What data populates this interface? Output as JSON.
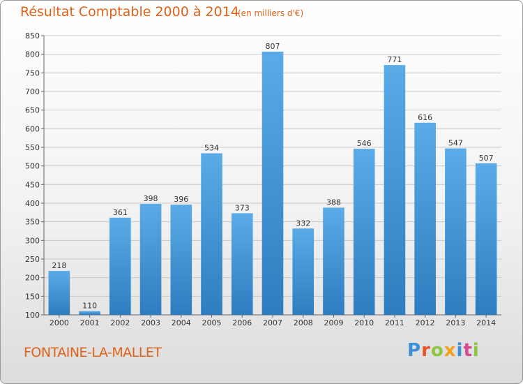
{
  "header": {
    "title": "Résultat Comptable 2000 à 2014",
    "unit": "(en milliers d'€)"
  },
  "footer": {
    "commune": "FONTAINE-LA-MALLET",
    "logo_text": "Proxiti",
    "logo_colors": [
      "#3a8fd6",
      "#e8532a",
      "#8cc63f",
      "#f3a21b",
      "#3a8fd6",
      "#d64a8d",
      "#8cc63f"
    ]
  },
  "chart_data": {
    "type": "bar",
    "categories": [
      "2000",
      "2001",
      "2002",
      "2003",
      "2004",
      "2005",
      "2006",
      "2007",
      "2008",
      "2009",
      "2010",
      "2011",
      "2012",
      "2013",
      "2014"
    ],
    "values": [
      218,
      110,
      361,
      398,
      396,
      534,
      373,
      807,
      332,
      388,
      546,
      771,
      616,
      547,
      507
    ],
    "ylim": [
      100,
      850
    ],
    "yticks": [
      100,
      150,
      200,
      250,
      300,
      350,
      400,
      450,
      500,
      550,
      600,
      650,
      700,
      750,
      800,
      850
    ],
    "grid": true,
    "bar_color_top": "#5aabe7",
    "bar_color_bottom": "#2e7dc0"
  }
}
